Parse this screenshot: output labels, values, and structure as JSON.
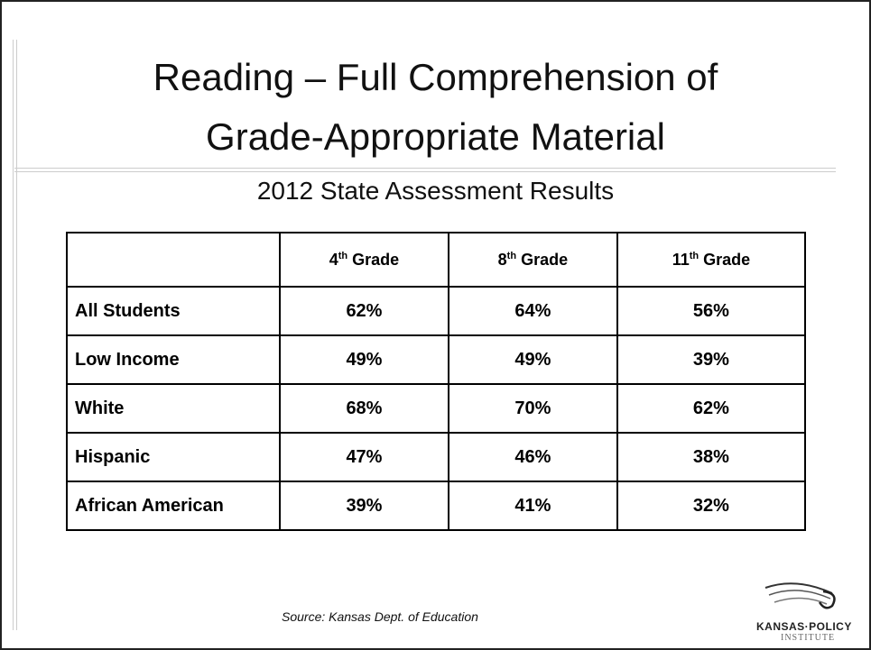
{
  "header": {
    "title_line1": "Reading – Full Comprehension of",
    "title_line2": "Grade-Appropriate Material"
  },
  "subtitle": "2012 State Assessment Results",
  "table": {
    "columns": [
      {
        "number": "4",
        "suffix": "th",
        "word": "Grade"
      },
      {
        "number": "8",
        "suffix": "th",
        "word": "Grade"
      },
      {
        "number": "11",
        "suffix": "th",
        "word": "Grade"
      }
    ],
    "rows": [
      [
        "All Students",
        "62%",
        "64%",
        "56%"
      ],
      [
        "Low Income",
        "49%",
        "49%",
        "39%"
      ],
      [
        "White",
        "68%",
        "70%",
        "62%"
      ],
      [
        "Hispanic",
        "47%",
        "46%",
        "38%"
      ],
      [
        "African American",
        "39%",
        "41%",
        "32%"
      ]
    ]
  },
  "source": "Source: Kansas Dept. of Education",
  "logo": {
    "line1": "KANSAS·POLICY",
    "line2": "INSTITUTE"
  }
}
